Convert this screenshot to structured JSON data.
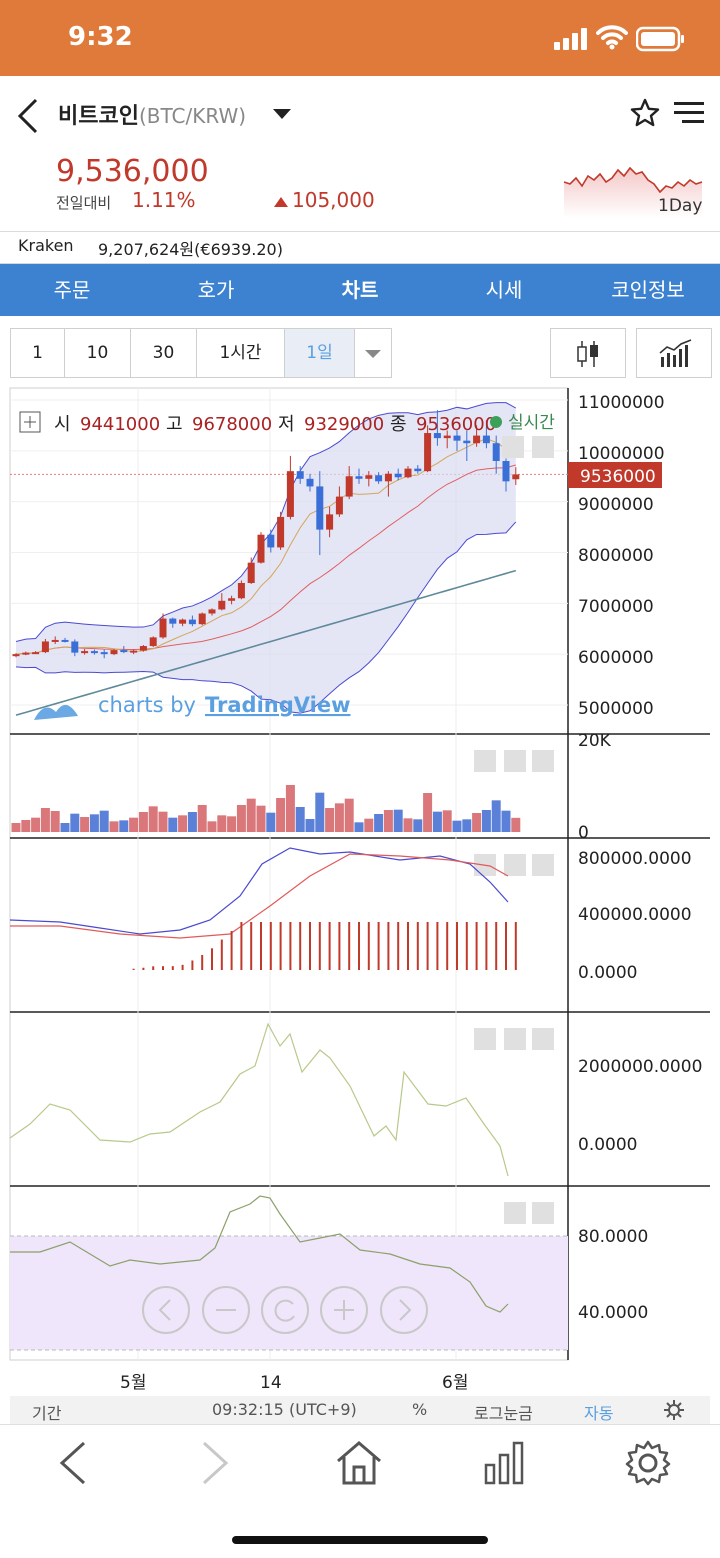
{
  "status_bar": {
    "time": "9:32"
  },
  "header": {
    "coin_name": "비트코인",
    "pair": "(BTC/KRW)",
    "price": "9,536,000",
    "change_label": "전일대비",
    "change_pct": "1.11%",
    "change_amount": "105,000",
    "sparkline_label": "1Day"
  },
  "exchange": {
    "name": "Kraken",
    "value": "9,207,624원(€6939.20)"
  },
  "tabs": [
    "주문",
    "호가",
    "차트",
    "시세",
    "코인정보"
  ],
  "active_tab": "차트",
  "intervals": [
    "1",
    "10",
    "30",
    "1시간",
    "1일"
  ],
  "selected_interval": "1일",
  "ohlc": {
    "open_label": "시",
    "open": "9441000",
    "high_label": "고",
    "high": "9678000",
    "low_label": "저",
    "low": "9329000",
    "close_label": "종",
    "close": "9536000",
    "realtime": "실시간"
  },
  "watermark": {
    "prefix": "charts by ",
    "brand": "TradingView"
  },
  "price_axis": [
    "11000000",
    "10000000",
    "9000000",
    "8000000",
    "7000000",
    "6000000",
    "5000000"
  ],
  "last_price_tag": "9536000",
  "volume_axis": [
    "20K",
    "0"
  ],
  "macd_axis": [
    "800000.0000",
    "400000.0000",
    "0.0000"
  ],
  "obv_axis": [
    "2000000.0000",
    "0.0000"
  ],
  "rsi_axis": [
    "80.0000",
    "40.0000"
  ],
  "x_axis": [
    "5월",
    "14",
    "6월"
  ],
  "bottom_bar": {
    "period": "기간",
    "clock": "09:32:15 (UTC+9)",
    "percent": "%",
    "log": "로그눈금",
    "auto": "자동"
  },
  "colors": {
    "up": "#c0392b",
    "down": "#3a6fd8",
    "accent": "#3d82d0",
    "status": "#e07a3a"
  },
  "chart_data": {
    "type": "candlestick",
    "y_unit": "KRW",
    "ylim": [
      4700000,
      11200000
    ],
    "candles": [
      [
        5970000,
        6020000,
        5940000,
        6000000
      ],
      [
        6000000,
        6050000,
        5980000,
        6030000
      ],
      [
        6030000,
        6060000,
        6010000,
        6040000
      ],
      [
        6040000,
        6300000,
        6020000,
        6250000
      ],
      [
        6250000,
        6350000,
        6200000,
        6280000
      ],
      [
        6280000,
        6320000,
        6230000,
        6250000
      ],
      [
        6250000,
        6290000,
        5960000,
        6030000
      ],
      [
        6030000,
        6100000,
        5990000,
        6060000
      ],
      [
        6060000,
        6090000,
        5990000,
        6040000
      ],
      [
        6040000,
        6090000,
        5920000,
        6000000
      ],
      [
        6000000,
        6100000,
        5980000,
        6080000
      ],
      [
        6080000,
        6160000,
        6020000,
        6060000
      ],
      [
        6060000,
        6090000,
        6000000,
        6070000
      ],
      [
        6070000,
        6180000,
        6050000,
        6160000
      ],
      [
        6160000,
        6350000,
        6140000,
        6330000
      ],
      [
        6330000,
        6800000,
        6300000,
        6700000
      ],
      [
        6700000,
        6720000,
        6520000,
        6600000
      ],
      [
        6600000,
        6700000,
        6550000,
        6680000
      ],
      [
        6680000,
        6760000,
        6550000,
        6590000
      ],
      [
        6590000,
        6820000,
        6570000,
        6800000
      ],
      [
        6800000,
        6900000,
        6760000,
        6880000
      ],
      [
        6880000,
        7200000,
        6860000,
        7050000
      ],
      [
        7050000,
        7150000,
        6980000,
        7100000
      ],
      [
        7100000,
        7450000,
        7080000,
        7400000
      ],
      [
        7400000,
        7900000,
        7380000,
        7800000
      ],
      [
        7800000,
        8400000,
        7780000,
        8350000
      ],
      [
        8350000,
        8450000,
        8000000,
        8100000
      ],
      [
        8100000,
        8800000,
        8050000,
        8700000
      ],
      [
        8700000,
        9900000,
        8650000,
        9600000
      ],
      [
        9600000,
        9700000,
        9350000,
        9450000
      ],
      [
        9450000,
        9550000,
        9200000,
        9300000
      ],
      [
        9300000,
        9600000,
        7950000,
        8450000
      ],
      [
        8450000,
        8900000,
        8300000,
        8750000
      ],
      [
        8750000,
        9300000,
        8700000,
        9100000
      ],
      [
        9100000,
        9700000,
        9050000,
        9500000
      ],
      [
        9500000,
        9650000,
        9350000,
        9450000
      ],
      [
        9450000,
        9600000,
        9300000,
        9520000
      ],
      [
        9520000,
        9580000,
        9350000,
        9400000
      ],
      [
        9400000,
        9600000,
        9100000,
        9550000
      ],
      [
        9550000,
        9650000,
        9420000,
        9480000
      ],
      [
        9480000,
        9700000,
        9460000,
        9650000
      ],
      [
        9650000,
        9720000,
        9550000,
        9600000
      ],
      [
        9600000,
        10500000,
        9580000,
        10350000
      ],
      [
        10350000,
        10800000,
        10100000,
        10250000
      ],
      [
        10250000,
        10400000,
        10050000,
        10300000
      ],
      [
        10300000,
        10400000,
        10000000,
        10200000
      ],
      [
        10200000,
        10400000,
        9800000,
        10150000
      ],
      [
        10150000,
        10500000,
        10080000,
        10300000
      ],
      [
        10300000,
        10600000,
        10050000,
        10150000
      ],
      [
        10150000,
        10300000,
        9550000,
        9800000
      ],
      [
        9800000,
        9850000,
        9200000,
        9400000
      ],
      [
        9441000,
        9678000,
        9329000,
        9536000
      ]
    ]
  }
}
